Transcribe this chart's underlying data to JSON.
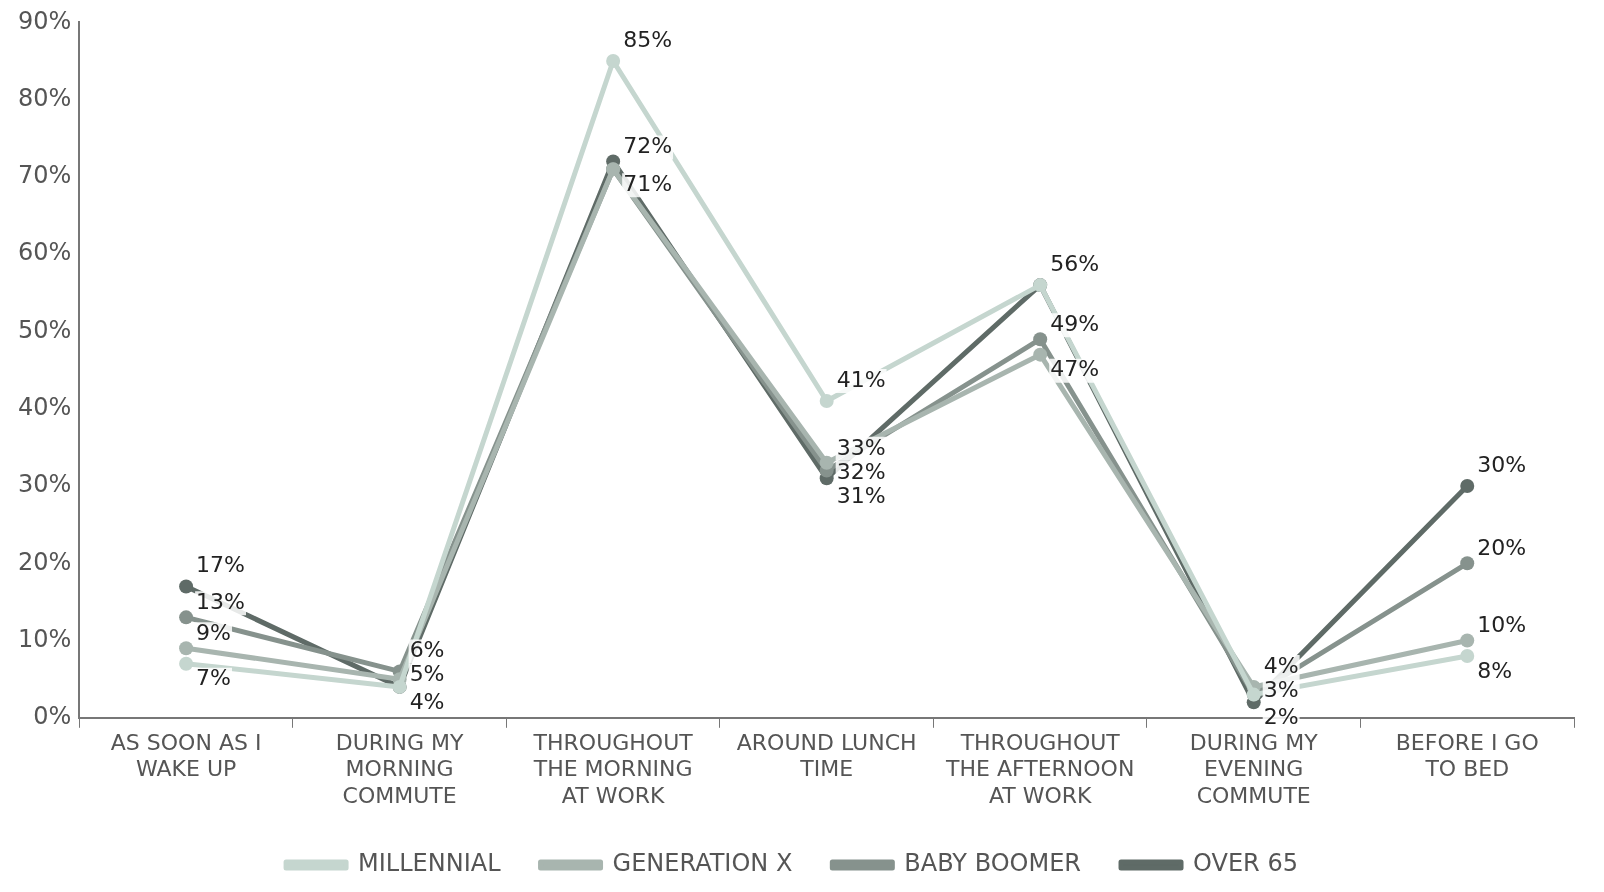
{
  "chart_data": {
    "type": "line",
    "categories": [
      "AS SOON AS I WAKE UP",
      "DURING MY MORNING COMMUTE",
      "THROUGHOUT THE MORNING AT WORK",
      "AROUND LUNCH TIME",
      "THROUGHOUT THE AFTERNOON AT WORK",
      "DURING MY EVENING COMMUTE",
      "BEFORE I GO TO BED"
    ],
    "series": [
      {
        "name": "MILLENNIAL",
        "color": "#c5d6cf",
        "values": [
          7,
          4,
          85,
          41,
          56,
          3,
          8
        ],
        "value_labels": [
          "7%",
          null,
          "85%",
          "41%",
          null,
          null,
          "8%"
        ]
      },
      {
        "name": "GENERATION X",
        "color": "#a8b5af",
        "values": [
          9,
          5,
          71,
          33,
          47,
          4,
          10
        ],
        "value_labels": [
          "9%",
          "5%",
          null,
          "33%",
          "47%",
          "4%",
          "10%"
        ]
      },
      {
        "name": "BABY BOOMER",
        "color": "#86928d",
        "values": [
          13,
          6,
          71,
          32,
          49,
          3,
          20
        ],
        "value_labels": [
          "13%",
          "6%",
          "71%",
          "32%",
          "49%",
          "3%",
          "20%"
        ]
      },
      {
        "name": "OVER 65",
        "color": "#5f6b67",
        "values": [
          17,
          4,
          72,
          31,
          56,
          2,
          30
        ],
        "value_labels": [
          "17%",
          "4%",
          "72%",
          "31%",
          "56%",
          "2%",
          "30%"
        ]
      }
    ],
    "ylim": [
      0,
      90
    ],
    "yticks": [
      {
        "value": 0,
        "label": "0%"
      },
      {
        "value": 10,
        "label": "10%"
      },
      {
        "value": 20,
        "label": "20%"
      },
      {
        "value": 30,
        "label": "30%"
      },
      {
        "value": 40,
        "label": "40%"
      },
      {
        "value": 50,
        "label": "50%"
      },
      {
        "value": 60,
        "label": "60%"
      },
      {
        "value": 70,
        "label": "70%"
      },
      {
        "value": 80,
        "label": "80%"
      },
      {
        "value": 90,
        "label": "90%"
      }
    ],
    "grid": false,
    "legend": "bottom",
    "marker": "circle",
    "line_style": "solid"
  }
}
